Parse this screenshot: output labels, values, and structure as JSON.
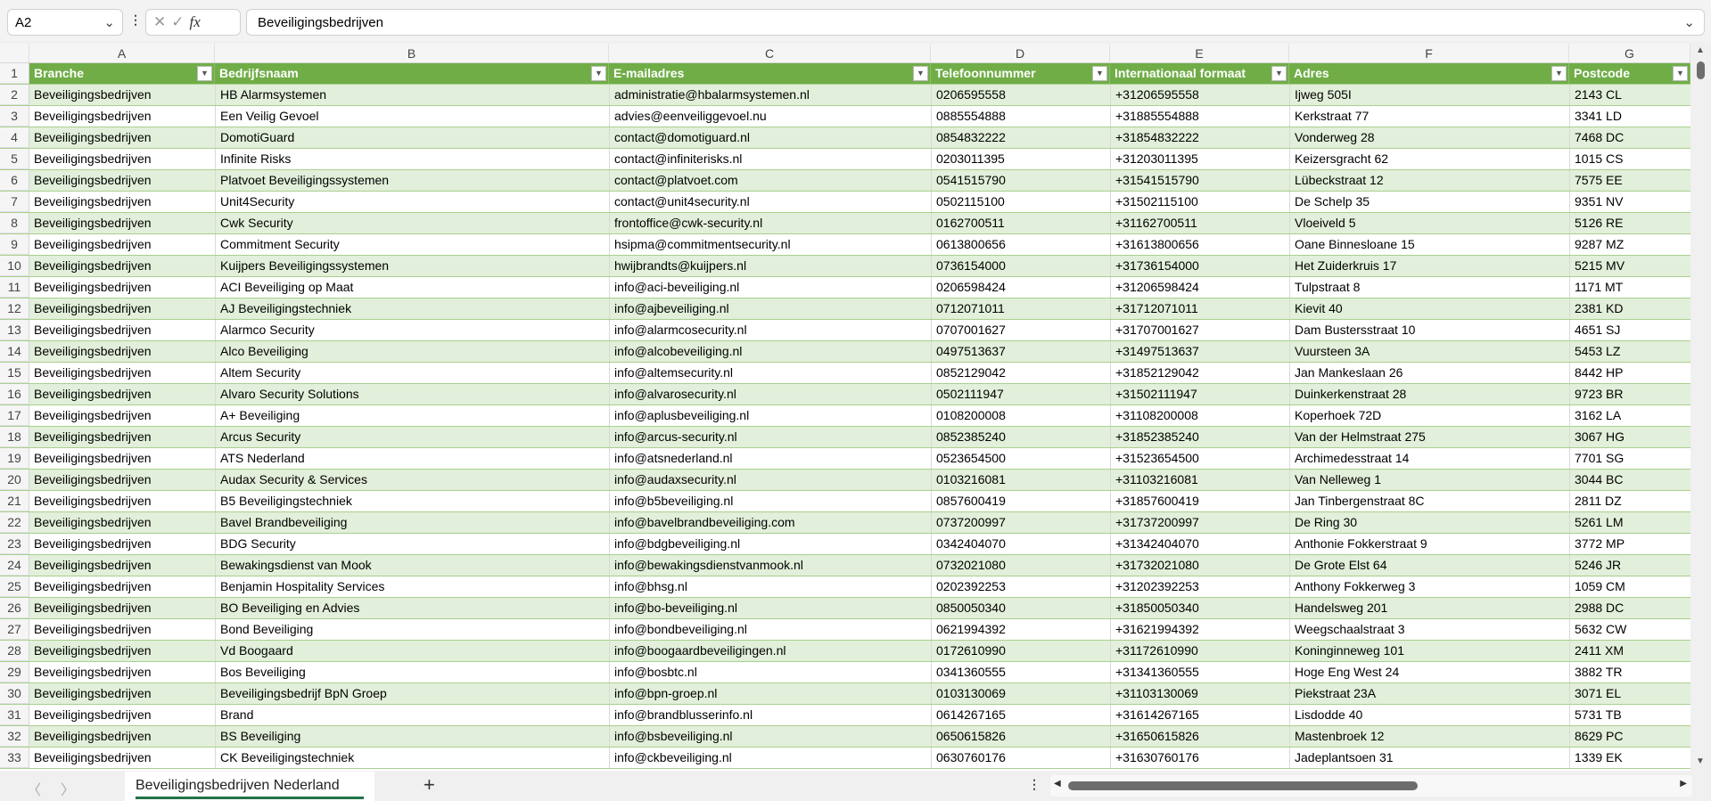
{
  "formula_bar": {
    "name_box": "A2",
    "formula": "Beveiligingsbedrijven",
    "fx": "fx"
  },
  "columns": [
    "A",
    "B",
    "C",
    "D",
    "E",
    "F",
    "G"
  ],
  "headers": [
    "Branche",
    "Bedrijfsnaam",
    "E-mailadres",
    "Telefoonnummer",
    "Internationaal formaat",
    "Adres",
    "Postcode"
  ],
  "rows": [
    [
      "Beveiligingsbedrijven",
      "HB Alarmsystemen",
      "administratie@hbalarmsystemen.nl",
      "0206595558",
      "+31206595558",
      "Ijweg 505I",
      "2143 CL"
    ],
    [
      "Beveiligingsbedrijven",
      "Een Veilig Gevoel",
      "advies@eenveiliggevoel.nu",
      "0885554888",
      "+31885554888",
      "Kerkstraat 77",
      "3341 LD"
    ],
    [
      "Beveiligingsbedrijven",
      "DomotiGuard",
      "contact@domotiguard.nl",
      "0854832222",
      "+31854832222",
      "Vonderweg 28",
      "7468 DC"
    ],
    [
      "Beveiligingsbedrijven",
      "Infinite Risks",
      "contact@infiniterisks.nl",
      "0203011395",
      "+31203011395",
      "Keizersgracht 62",
      "1015 CS"
    ],
    [
      "Beveiligingsbedrijven",
      "Platvoet Beveiligingssystemen",
      "contact@platvoet.com",
      "0541515790",
      "+31541515790",
      "Lübeckstraat 12",
      "7575 EE"
    ],
    [
      "Beveiligingsbedrijven",
      "Unit4Security",
      "contact@unit4security.nl",
      "0502115100",
      "+31502115100",
      "De Schelp 35",
      "9351 NV"
    ],
    [
      "Beveiligingsbedrijven",
      "Cwk Security",
      "frontoffice@cwk-security.nl",
      "0162700511",
      "+31162700511",
      "Vloeiveld 5",
      "5126 RE"
    ],
    [
      "Beveiligingsbedrijven",
      "Commitment Security",
      "hsipma@commitmentsecurity.nl",
      "0613800656",
      "+31613800656",
      "Oane Binnesloane 15",
      "9287 MZ"
    ],
    [
      "Beveiligingsbedrijven",
      "Kuijpers Beveiligingssystemen",
      "hwijbrandts@kuijpers.nl",
      "0736154000",
      "+31736154000",
      "Het Zuiderkruis 17",
      "5215 MV"
    ],
    [
      "Beveiligingsbedrijven",
      "ACI Beveiliging op Maat",
      "info@aci-beveiliging.nl",
      "0206598424",
      "+31206598424",
      "Tulpstraat 8",
      "1171 MT"
    ],
    [
      "Beveiligingsbedrijven",
      "AJ Beveiligingstechniek",
      "info@ajbeveiliging.nl",
      "0712071011",
      "+31712071011",
      "Kievit 40",
      "2381 KD"
    ],
    [
      "Beveiligingsbedrijven",
      "Alarmco Security",
      "info@alarmcosecurity.nl",
      "0707001627",
      "+31707001627",
      "Dam Bustersstraat 10",
      "4651 SJ"
    ],
    [
      "Beveiligingsbedrijven",
      "Alco Beveiliging",
      "info@alcobeveiliging.nl",
      "0497513637",
      "+31497513637",
      "Vuursteen 3A",
      "5453 LZ"
    ],
    [
      "Beveiligingsbedrijven",
      "Altem Security",
      "info@altemsecurity.nl",
      "0852129042",
      "+31852129042",
      "Jan Mankeslaan 26",
      "8442 HP"
    ],
    [
      "Beveiligingsbedrijven",
      "Alvaro Security Solutions",
      "info@alvarosecurity.nl",
      "0502111947",
      "+31502111947",
      "Duinkerkenstraat 28",
      "9723 BR"
    ],
    [
      "Beveiligingsbedrijven",
      "A+ Beveiliging",
      "info@aplusbeveiliging.nl",
      "0108200008",
      "+31108200008",
      "Koperhoek 72D",
      "3162 LA"
    ],
    [
      "Beveiligingsbedrijven",
      "Arcus Security",
      "info@arcus-security.nl",
      "0852385240",
      "+31852385240",
      "Van der Helmstraat 275",
      "3067 HG"
    ],
    [
      "Beveiligingsbedrijven",
      "ATS Nederland",
      "info@atsnederland.nl",
      "0523654500",
      "+31523654500",
      "Archimedesstraat 14",
      "7701 SG"
    ],
    [
      "Beveiligingsbedrijven",
      "Audax Security & Services",
      "info@audaxsecurity.nl",
      "0103216081",
      "+31103216081",
      "Van Nelleweg 1",
      "3044 BC"
    ],
    [
      "Beveiligingsbedrijven",
      "B5 Beveiligingstechniek",
      "info@b5beveiliging.nl",
      "0857600419",
      "+31857600419",
      "Jan Tinbergenstraat 8C",
      "2811 DZ"
    ],
    [
      "Beveiligingsbedrijven",
      "Bavel Brandbeveiliging",
      "info@bavelbrandbeveiliging.com",
      "0737200997",
      "+31737200997",
      "De Ring 30",
      "5261 LM"
    ],
    [
      "Beveiligingsbedrijven",
      "BDG Security",
      "info@bdgbeveiliging.nl",
      "0342404070",
      "+31342404070",
      "Anthonie Fokkerstraat 9",
      "3772 MP"
    ],
    [
      "Beveiligingsbedrijven",
      "Bewakingsdienst van Mook",
      "info@bewakingsdienstvanmook.nl",
      "0732021080",
      "+31732021080",
      "De Grote Elst 64",
      "5246 JR"
    ],
    [
      "Beveiligingsbedrijven",
      "Benjamin Hospitality Services",
      "info@bhsg.nl",
      "0202392253",
      "+31202392253",
      "Anthony Fokkerweg 3",
      "1059 CM"
    ],
    [
      "Beveiligingsbedrijven",
      "BO Beveiliging en Advies",
      "info@bo-beveiliging.nl",
      "0850050340",
      "+31850050340",
      "Handelsweg 201",
      "2988 DC"
    ],
    [
      "Beveiligingsbedrijven",
      "Bond Beveiliging",
      "info@bondbeveiliging.nl",
      "0621994392",
      "+31621994392",
      "Weegschaalstraat 3",
      "5632 CW"
    ],
    [
      "Beveiligingsbedrijven",
      "Vd Boogaard",
      "info@boogaardbeveiligingen.nl",
      "0172610990",
      "+31172610990",
      "Koninginneweg 101",
      "2411 XM"
    ],
    [
      "Beveiligingsbedrijven",
      "Bos Beveiliging",
      "info@bosbtc.nl",
      "0341360555",
      "+31341360555",
      "Hoge Eng West 24",
      "3882 TR"
    ],
    [
      "Beveiligingsbedrijven",
      "Beveiligingsbedrijf BpN Groep",
      "info@bpn-groep.nl",
      "0103130069",
      "+31103130069",
      "Piekstraat 23A",
      "3071 EL"
    ],
    [
      "Beveiligingsbedrijven",
      "Brand",
      "info@brandblusserinfo.nl",
      "0614267165",
      "+31614267165",
      "Lisdodde 40",
      "5731 TB"
    ],
    [
      "Beveiligingsbedrijven",
      "BS Beveiliging",
      "info@bsbeveiliging.nl",
      "0650615826",
      "+31650615826",
      "Mastenbroek 12",
      "8629 PC"
    ],
    [
      "Beveiligingsbedrijven",
      "CK Beveiligingstechniek",
      "info@ckbeveiliging.nl",
      "0630760176",
      "+31630760176",
      "Jadeplantsoen 31",
      "1339 EK"
    ]
  ],
  "sheet_tabs": [
    {
      "label": "Beveiligingsbedrijven Nederland",
      "active": true
    }
  ],
  "add_sheet": "+",
  "colors": {
    "header": "#70AD47",
    "band": "#E2EFDA",
    "border": "#A9D08E",
    "tab_underline": "#217346"
  }
}
